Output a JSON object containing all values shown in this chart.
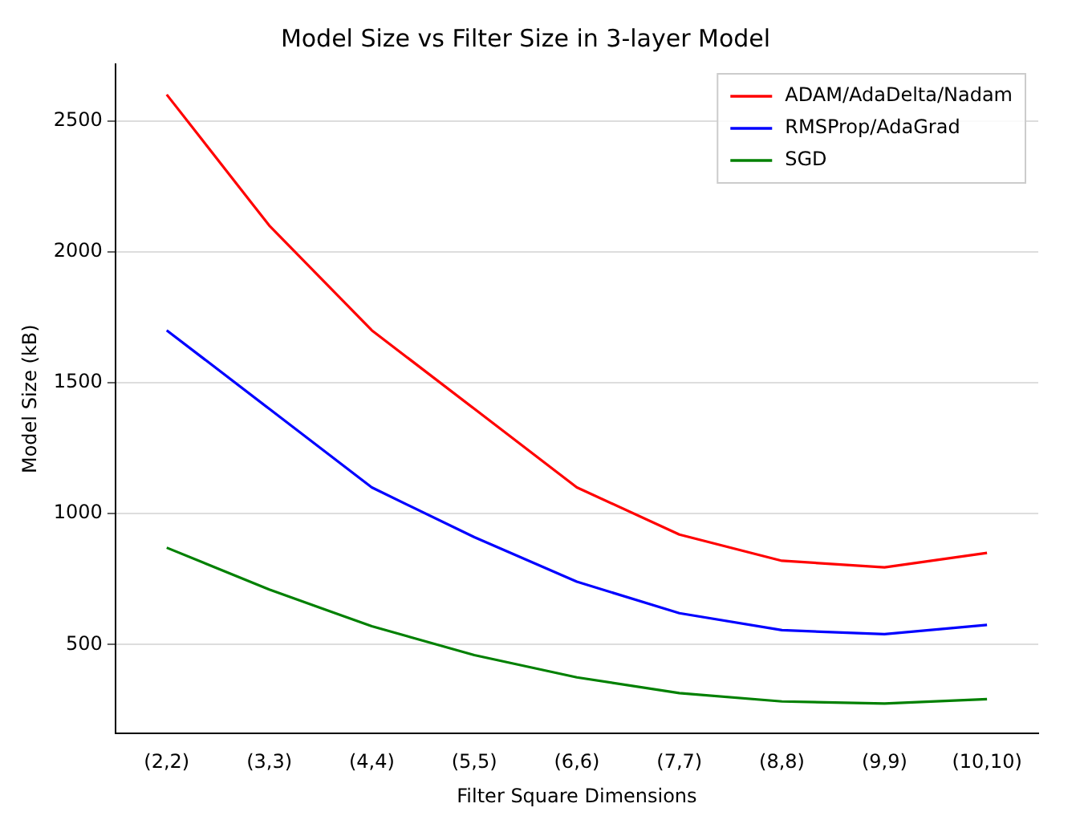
{
  "chart_data": {
    "type": "line",
    "title": "Model Size vs Filter Size in 3-layer Model",
    "xlabel": "Filter Square Dimensions",
    "ylabel": "Model Size (kB)",
    "categories": [
      "(2,2)",
      "(3,3)",
      "(4,4)",
      "(5,5)",
      "(6,6)",
      "(7,7)",
      "(8,8)",
      "(9,9)",
      "(10,10)"
    ],
    "series": [
      {
        "name": "ADAM/AdaDelta/Nadam",
        "color": "#ff0000",
        "values": [
          2600,
          2100,
          1700,
          1400,
          1100,
          920,
          820,
          795,
          850
        ]
      },
      {
        "name": "RMSProp/AdaGrad",
        "color": "#0000ff",
        "values": [
          1700,
          1400,
          1100,
          910,
          740,
          620,
          555,
          540,
          575
        ]
      },
      {
        "name": "SGD",
        "color": "#008000",
        "values": [
          870,
          710,
          570,
          460,
          375,
          315,
          283,
          275,
          292
        ]
      }
    ],
    "ylim": [
      160,
      2716
    ],
    "yticks": [
      500,
      1000,
      1500,
      2000,
      2500
    ],
    "grid": "y",
    "legend": "top right",
    "marker": "none",
    "line_style": "solid"
  }
}
